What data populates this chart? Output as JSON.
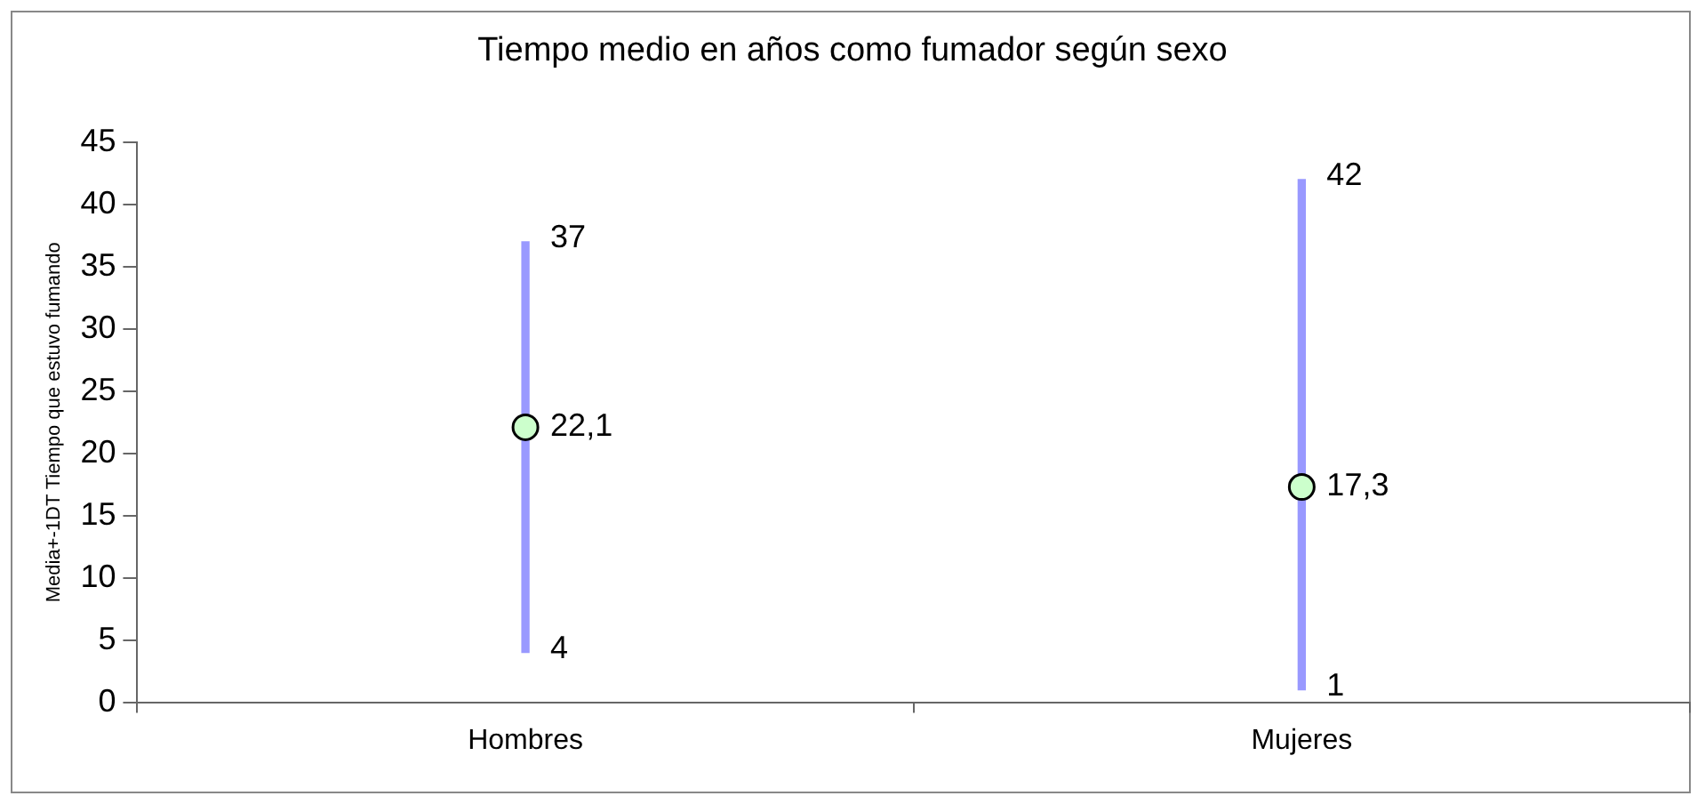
{
  "chart_data": {
    "type": "scatter",
    "title": "Tiempo medio en años como fumador según sexo",
    "ylabel": "Media+-1DT Tiempo que estuvo fumando",
    "categories": [
      "Hombres",
      "Mujeres"
    ],
    "series": [
      {
        "type": "bar",
        "color": "#9999ff",
        "base": [
          4,
          1
        ],
        "values": [
          33,
          41
        ]
      },
      {
        "color": "#ccffcc",
        "values": [
          22.1,
          17.3
        ],
        "value_labels": [
          "22,1",
          "17,3"
        ]
      }
    ],
    "annotations": [
      {
        "text": "37",
        "x": "Hombres",
        "y": 37
      },
      {
        "text": "4",
        "x": "Hombres",
        "y": 4
      },
      {
        "text": "42",
        "x": "Mujeres",
        "y": 42
      },
      {
        "text": "1",
        "x": "Mujeres",
        "y": 1
      }
    ],
    "ylim": [
      0,
      45
    ],
    "yticks": [
      0,
      5,
      10,
      15,
      20,
      25,
      30,
      35,
      40,
      45
    ],
    "grid": false,
    "legend": false,
    "marker": "circle"
  }
}
